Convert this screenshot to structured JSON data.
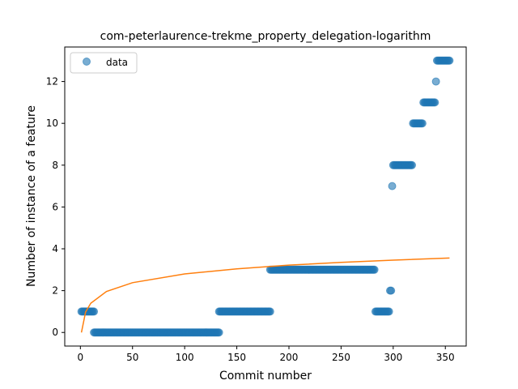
{
  "chart_data": {
    "type": "scatter",
    "title": "com-peterlaurence-trekme_property_delegation-logarithm",
    "xlabel": "Commit number",
    "ylabel": "Number of instance of a feature",
    "xlim": [
      -15,
      370
    ],
    "ylim": [
      -0.65,
      13.65
    ],
    "xticks": [
      0,
      50,
      100,
      150,
      200,
      250,
      300,
      350
    ],
    "yticks": [
      0,
      2,
      4,
      6,
      8,
      10,
      12
    ],
    "grid": false,
    "legend": {
      "placement": "top-left",
      "entries": [
        {
          "label": "data",
          "marker": "circle",
          "color": "#1f77b4"
        }
      ]
    },
    "series": [
      {
        "name": "data",
        "kind": "points",
        "color": "#1f77b4",
        "segments": [
          {
            "x_from": 1,
            "x_to": 13,
            "y": 1
          },
          {
            "x_from": 13,
            "x_to": 133,
            "y": 0
          },
          {
            "x_from": 133,
            "x_to": 182,
            "y": 1
          },
          {
            "x_from": 182,
            "x_to": 282,
            "y": 3
          },
          {
            "x_from": 283,
            "x_to": 296,
            "y": 1
          },
          {
            "x_from": 297,
            "x_to": 298,
            "y": 2
          },
          {
            "x_from": 299,
            "x_to": 299,
            "y": 7
          },
          {
            "x_from": 300,
            "x_to": 318,
            "y": 8
          },
          {
            "x_from": 319,
            "x_to": 328,
            "y": 10
          },
          {
            "x_from": 329,
            "x_to": 340,
            "y": 11
          },
          {
            "x_from": 341,
            "x_to": 341,
            "y": 12
          },
          {
            "x_from": 342,
            "x_to": 354,
            "y": 13
          }
        ]
      },
      {
        "kind": "line",
        "color": "#ff7f0e",
        "function": "logarithmic fit",
        "x_range": [
          1,
          354
        ],
        "samples": [
          {
            "x": 1,
            "y": 0.0
          },
          {
            "x": 5,
            "y": 0.98
          },
          {
            "x": 10,
            "y": 1.4
          },
          {
            "x": 25,
            "y": 1.96
          },
          {
            "x": 50,
            "y": 2.38
          },
          {
            "x": 100,
            "y": 2.8
          },
          {
            "x": 150,
            "y": 3.04
          },
          {
            "x": 200,
            "y": 3.22
          },
          {
            "x": 250,
            "y": 3.35
          },
          {
            "x": 300,
            "y": 3.46
          },
          {
            "x": 354,
            "y": 3.56
          }
        ]
      }
    ]
  }
}
